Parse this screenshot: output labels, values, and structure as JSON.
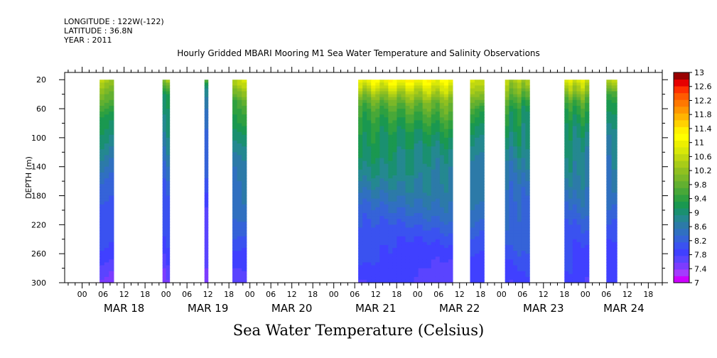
{
  "header": {
    "longitude": "LONGITUDE : 122W(-122)",
    "latitude": "LATITUDE : 36.8N",
    "year": "YEAR : 2011"
  },
  "title": "Hourly Gridded MBARI Mooring M1 Sea Water Temperature and Salinity Observations",
  "footer": "Sea Water Temperature (Celsius)",
  "chart_data": {
    "type": "heatmap",
    "title": "Hourly Gridded MBARI Mooring M1 Sea Water Temperature and Salinity Observations",
    "xlabel": "",
    "ylabel": "DEPTH (m)",
    "colorbar_label": "Sea Water Temperature (Celsius)",
    "x_range_hours": [
      -5,
      166
    ],
    "x_tick_labels": [
      "00",
      "06",
      "12",
      "18",
      "00",
      "06",
      "12",
      "18",
      "00",
      "06",
      "12",
      "18",
      "00",
      "06",
      "12",
      "18",
      "00",
      "06",
      "12",
      "18",
      "00",
      "06",
      "12",
      "18",
      "00",
      "06",
      "12",
      "18"
    ],
    "x_tick_hours": [
      0,
      6,
      12,
      18,
      24,
      30,
      36,
      42,
      48,
      54,
      60,
      66,
      72,
      78,
      84,
      90,
      96,
      102,
      108,
      114,
      120,
      126,
      132,
      138,
      144,
      150,
      156,
      162
    ],
    "x_day_labels": [
      "MAR 18",
      "MAR 19",
      "MAR 20",
      "MAR 21",
      "MAR 22",
      "MAR 23",
      "MAR 24"
    ],
    "x_day_hours": [
      12,
      36,
      60,
      84,
      108,
      132,
      155
    ],
    "y_ticks": [
      20,
      60,
      100,
      140,
      180,
      220,
      260,
      300
    ],
    "y_range": [
      10,
      300
    ],
    "y_inverted": true,
    "colorbar": {
      "ticks": [
        "13",
        "12.6",
        "12.2",
        "11.8",
        "11.4",
        "11",
        "10.6",
        "10.2",
        "9.8",
        "9.4",
        "9",
        "8.6",
        "8.2",
        "7.8",
        "7.4",
        "7"
      ],
      "levels": [
        7.0,
        7.2,
        7.4,
        7.6,
        7.8,
        8.0,
        8.2,
        8.4,
        8.6,
        8.8,
        9.0,
        9.2,
        9.4,
        9.6,
        9.8,
        10.0,
        10.2,
        10.4,
        10.6,
        10.8,
        11.0,
        11.2,
        11.4,
        11.6,
        11.8,
        12.0,
        12.2,
        12.4,
        12.6,
        12.8,
        13.0
      ],
      "colors": [
        "#cc00ff",
        "#a33bff",
        "#7c3cff",
        "#5a44ff",
        "#4040ff",
        "#3a52f0",
        "#3563d8",
        "#3070c0",
        "#2c7aa8",
        "#248890",
        "#1a9070",
        "#1a9850",
        "#2ea040",
        "#48a838",
        "#62b030",
        "#7ab828",
        "#90c020",
        "#a8cc18",
        "#c0d810",
        "#d8e808",
        "#ecf000",
        "#ffff00",
        "#fff000",
        "#ffd200",
        "#ffb400",
        "#ff9600",
        "#ff7800",
        "#ff5a00",
        "#ff3000",
        "#e60000",
        "#990000"
      ]
    },
    "segments": [
      {
        "start_hour": 5,
        "end_hour": 9,
        "surface": 10.9,
        "thermocline_depth": 70,
        "bottom": 7.6
      },
      {
        "start_hour": 23,
        "end_hour": 25,
        "surface": 11.0,
        "thermocline_depth": 40,
        "bottom": 7.6
      },
      {
        "start_hour": 35,
        "end_hour": 36,
        "surface": 10.8,
        "thermocline_depth": 30,
        "bottom": 7.4
      },
      {
        "start_hour": 43,
        "end_hour": 47,
        "surface": 11.2,
        "thermocline_depth": 50,
        "bottom": 7.8
      },
      {
        "start_hour": 79,
        "end_hour": 106,
        "surface": 11.6,
        "thermocline_depth": 50,
        "bottom": 7.7
      },
      {
        "start_hour": 111,
        "end_hour": 115,
        "surface": 11.3,
        "thermocline_depth": 60,
        "bottom": 7.9
      },
      {
        "start_hour": 121,
        "end_hour": 128,
        "surface": 11.0,
        "thermocline_depth": 60,
        "bottom": 7.9
      },
      {
        "start_hour": 138,
        "end_hour": 145,
        "surface": 11.3,
        "thermocline_depth": 50,
        "bottom": 7.8
      },
      {
        "start_hour": 150,
        "end_hour": 153,
        "surface": 11.1,
        "thermocline_depth": 40,
        "bottom": 7.8
      }
    ]
  }
}
